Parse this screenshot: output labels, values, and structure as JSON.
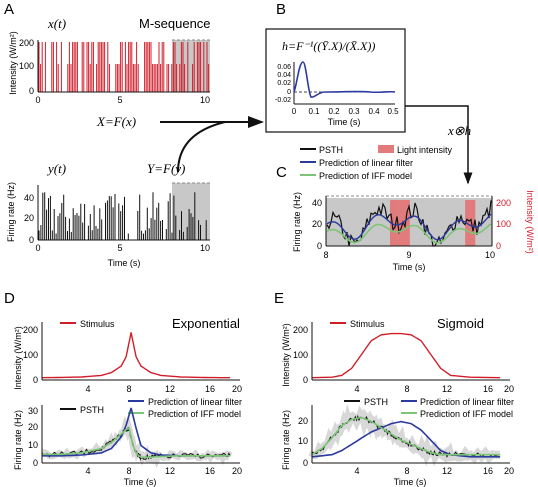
{
  "panels": {
    "A": {
      "letter": "A",
      "x_label": "x(t)",
      "title": "M-sequence",
      "ylabel": "Intensity (W/m²)",
      "yticks": [
        "0",
        "100",
        "200"
      ],
      "xticks": [
        "0",
        "5",
        "10"
      ],
      "X_eq": "X=F(x)",
      "y_label": "y(t)",
      "Y_eq": "Y=F(y)",
      "ylabel2": "Firing rate (Hz)",
      "yticks2": [
        "0",
        "20",
        "40"
      ],
      "xticks2": [
        "0",
        "5",
        "10"
      ],
      "xlabel2": "Time (s)"
    },
    "B": {
      "letter": "B",
      "formula": "h=F⁻¹((Ȳ.X)/(X̄.X))",
      "yticks": [
        "0.06",
        "0.04",
        "0.02",
        "0",
        "-0.02"
      ],
      "xticks": [
        "0",
        "0.1",
        "0.2",
        "0.3",
        "0.4",
        "0.5"
      ],
      "xlabel": "Time (s)",
      "conv": "x⊗h"
    },
    "C": {
      "letter": "C",
      "legend": [
        "PSTH",
        "Light intensity",
        "Prediction of linear filter",
        "Prediction of IFF model"
      ],
      "ylabel": "Firing rate (Hz)",
      "ylabel_right": "Intensity (W/m²)",
      "yticks": [
        "0",
        "20",
        "40"
      ],
      "yticks_right": [
        "0",
        "100",
        "200"
      ],
      "xticks": [
        "8",
        "9",
        "10"
      ],
      "xlabel": "Time (s)"
    },
    "D": {
      "letter": "D",
      "title": "Exponential",
      "stim_label": "Stimulus",
      "ylabel_top": "Intensity (W/m²)",
      "yticks_top": [
        "0",
        "100",
        "200"
      ],
      "xticks_top": [
        "4",
        "8",
        "12",
        "16",
        "20"
      ],
      "legend": [
        "PSTH",
        "Prediction of linear filter",
        "Prediction of IFF model"
      ],
      "ylabel_bot": "Firing rate (Hz)",
      "yticks_bot": [
        "0",
        "10",
        "20",
        "30"
      ],
      "xticks_bot": [
        "4",
        "8",
        "12",
        "16",
        "20"
      ],
      "xlabel": "Time (s)"
    },
    "E": {
      "letter": "E",
      "title": "Sigmoid",
      "stim_label": "Stimulus",
      "ylabel_top": "Intensity (W/m²)",
      "yticks_top": [
        "0",
        "100",
        "200"
      ],
      "xticks_top": [
        "4",
        "8",
        "12",
        "16",
        "20"
      ],
      "legend": [
        "PSTH",
        "Prediction of linear filter",
        "Prediction of IFF model"
      ],
      "ylabel_bot": "Firing rate (Hz)",
      "yticks_bot": [
        "0",
        "10",
        "20"
      ],
      "xticks_bot": [
        "4",
        "8",
        "12",
        "16",
        "20"
      ],
      "xlabel": "Time (s)"
    }
  },
  "colors": {
    "stimulus": "#d11d2a",
    "psth": "#111111",
    "linear": "#2b3a9e",
    "iff": "#7cc576",
    "light_fill": "#e27b7b",
    "shade": "#c8c8c8"
  },
  "chart_data": [
    {
      "type": "line",
      "name": "D-stimulus",
      "x": [
        0,
        2,
        4,
        6,
        7,
        8,
        8.5,
        9,
        9.5,
        10,
        11,
        12,
        14,
        16,
        18,
        19
      ],
      "values": [
        10,
        11,
        13,
        20,
        32,
        60,
        100,
        205,
        100,
        60,
        32,
        20,
        13,
        11,
        10,
        10
      ],
      "xlim": [
        0,
        20
      ],
      "ylim": [
        0,
        250
      ]
    },
    {
      "type": "line",
      "name": "D-linear",
      "x": [
        0,
        2,
        4,
        6,
        7,
        8,
        8.5,
        9,
        9.5,
        10,
        11,
        12,
        14,
        16,
        18,
        19
      ],
      "values": [
        5,
        5,
        5.5,
        7,
        10,
        18,
        26,
        38,
        24,
        12,
        7,
        5.5,
        5,
        5,
        5,
        5
      ],
      "xlim": [
        0,
        20
      ],
      "ylim": [
        0,
        40
      ]
    },
    {
      "type": "line",
      "name": "D-iff",
      "x": [
        0,
        2,
        4,
        6,
        7,
        8,
        8.5,
        8.8,
        9.2,
        9.6,
        10,
        11,
        12,
        14,
        16,
        18,
        19
      ],
      "values": [
        6,
        6,
        7,
        10,
        14,
        20,
        23,
        24,
        12,
        6,
        4,
        4,
        4.5,
        5,
        5,
        5,
        5
      ],
      "xlim": [
        0,
        20
      ],
      "ylim": [
        0,
        40
      ]
    },
    {
      "type": "line",
      "name": "E-stimulus",
      "x": [
        0,
        2,
        3,
        4,
        5,
        6,
        7,
        8,
        9,
        10,
        11,
        12,
        13,
        14,
        16,
        19
      ],
      "values": [
        10,
        12,
        20,
        50,
        110,
        170,
        195,
        200,
        200,
        195,
        170,
        110,
        50,
        20,
        12,
        10
      ],
      "xlim": [
        0,
        20
      ],
      "ylim": [
        0,
        250
      ]
    },
    {
      "type": "line",
      "name": "E-linear",
      "x": [
        0,
        2,
        3,
        4,
        5,
        6,
        7,
        8,
        9,
        10,
        11,
        12,
        13,
        14,
        16,
        19
      ],
      "values": [
        3,
        4,
        6,
        9,
        12,
        15,
        17,
        19,
        20,
        19,
        16,
        11,
        6,
        4,
        3,
        3
      ],
      "xlim": [
        0,
        20
      ],
      "ylim": [
        0,
        28
      ]
    },
    {
      "type": "line",
      "name": "E-iff",
      "x": [
        0,
        1,
        2,
        3,
        4,
        5,
        6,
        7,
        8,
        9,
        10,
        11,
        12,
        13,
        14,
        16,
        19
      ],
      "values": [
        4,
        7,
        12,
        18,
        21,
        22,
        20,
        17,
        14,
        11,
        9,
        7,
        5,
        4,
        4,
        4,
        4
      ],
      "xlim": [
        0,
        20
      ],
      "ylim": [
        0,
        28
      ]
    }
  ]
}
